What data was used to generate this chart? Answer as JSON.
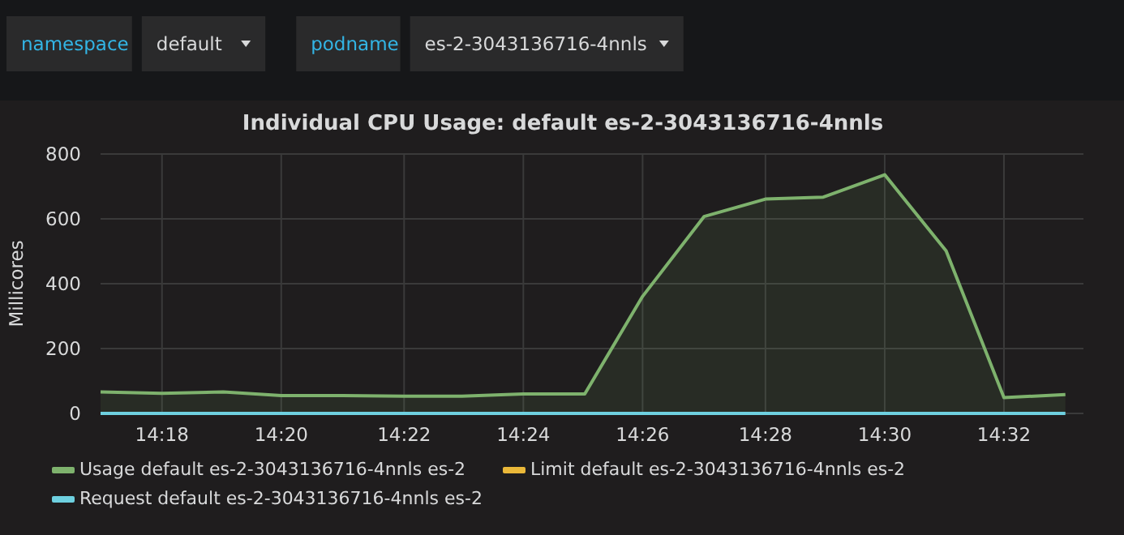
{
  "chart_data": [
    {
      "type": "other",
      "annotations": [
        "namespace",
        "default",
        "podname",
        "es-2-3043136716-4nnls"
      ]
    },
    {
      "type": "line",
      "title": "Individual CPU Usage: default es-2-3043136716-4nnls",
      "ylabel": "Millicores",
      "x": [
        14.283,
        14.3,
        14.317,
        14.333,
        14.35,
        14.367,
        14.383,
        14.4,
        14.417,
        14.433,
        14.45,
        14.467,
        14.483,
        14.5,
        14.517,
        14.533,
        14.55
      ],
      "xlim": [
        14.283,
        14.555
      ],
      "xticks": [
        {
          "value": 14.3,
          "label": "14:18"
        },
        {
          "value": 14.333,
          "label": "14:20"
        },
        {
          "value": 14.367,
          "label": "14:22"
        },
        {
          "value": 14.4,
          "label": "14:24"
        },
        {
          "value": 14.433,
          "label": "14:26"
        },
        {
          "value": 14.467,
          "label": "14:28"
        },
        {
          "value": 14.5,
          "label": "14:30"
        },
        {
          "value": 14.533,
          "label": "14:32"
        }
      ],
      "ylim": [
        0,
        800
      ],
      "yticks": [
        0,
        200,
        400,
        600,
        800
      ],
      "grid": true,
      "legend": "bottom",
      "series": [
        {
          "name": "Usage default es-2-3043136716-4nnls es-2",
          "type": "area",
          "color": "#7eb26d",
          "values": [
            66,
            62,
            66,
            55,
            55,
            53,
            53,
            60,
            60,
            361,
            607,
            661,
            667,
            736,
            501,
            49,
            58
          ]
        },
        {
          "name": "Limit default es-2-3043136716-4nnls es-2",
          "type": "line",
          "color": "#eab839",
          "values": [
            null,
            null,
            null,
            null,
            null,
            null,
            null,
            null,
            null,
            null,
            null,
            null,
            null,
            null,
            null,
            null,
            null
          ]
        },
        {
          "name": "Request default es-2-3043136716-4nnls es-2",
          "type": "line",
          "color": "#6ed0e0",
          "values": [
            0,
            0,
            0,
            0,
            0,
            0,
            0,
            0,
            0,
            0,
            0,
            0,
            0,
            0,
            0,
            0,
            0
          ]
        }
      ]
    }
  ]
}
